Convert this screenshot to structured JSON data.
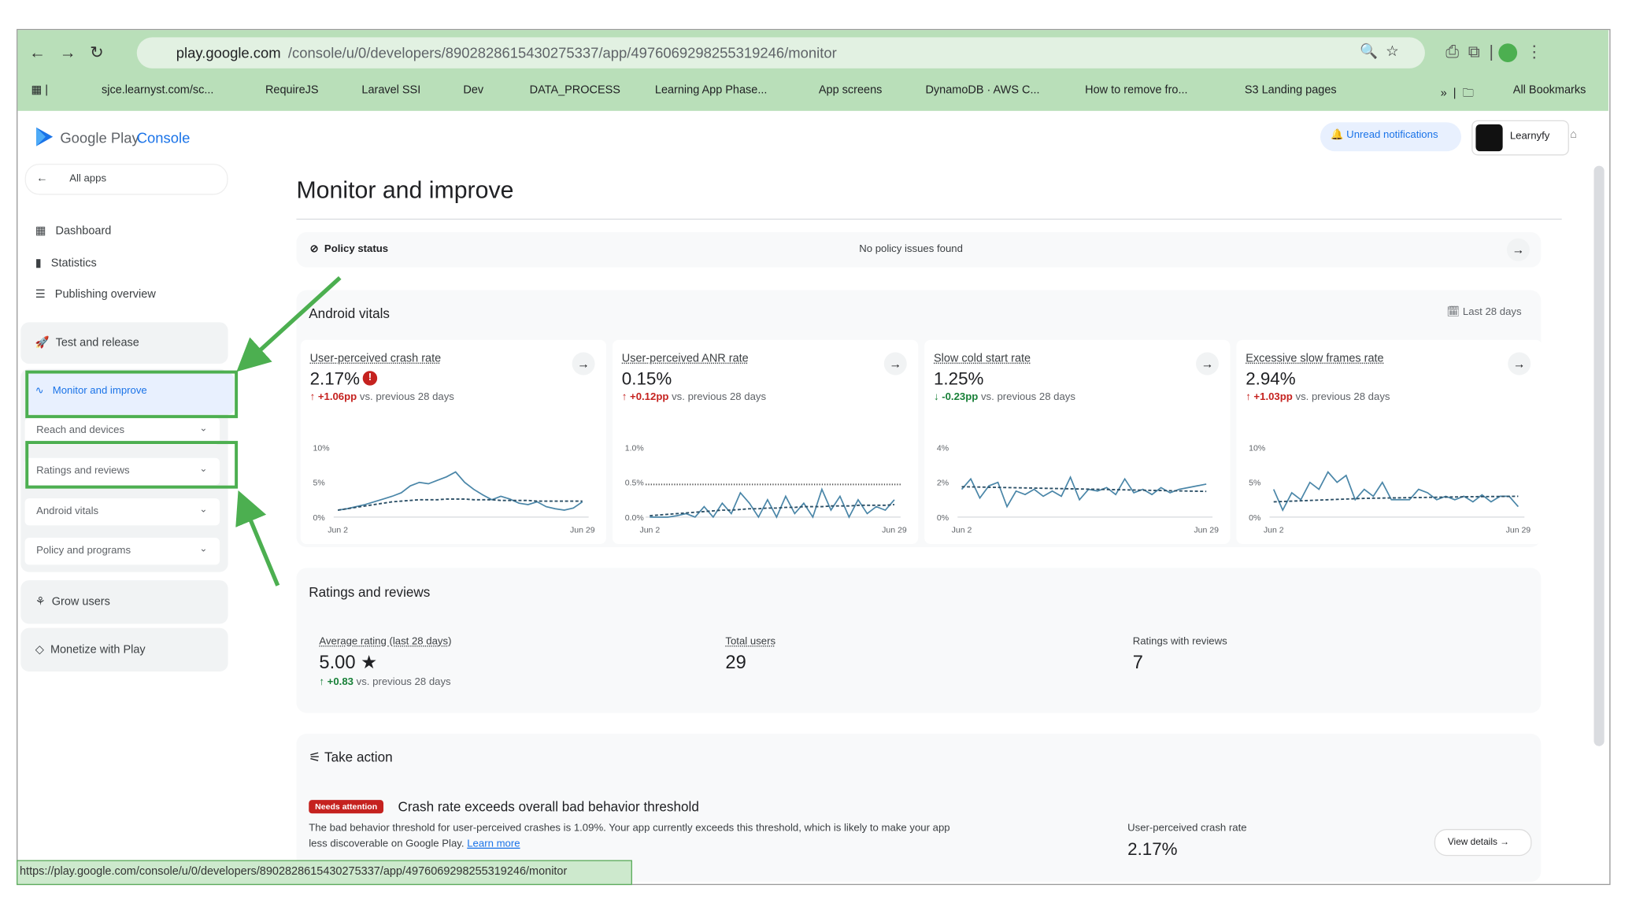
{
  "browser": {
    "url_host": "play.google.com",
    "url_path": "/console/u/0/developers/8902828615430275337/app/4976069298255319246/monitor",
    "bookmarks": [
      "sjce.learnyst.com/sc...",
      "RequireJS",
      "Laravel SSI",
      "Dev",
      "DATA_PROCESS",
      "Learning App Phase...",
      "App screens",
      "DynamoDB · AWS C...",
      "How to remove fro...",
      "S3 Landing pages"
    ],
    "all_bookmarks": "All Bookmarks",
    "status_url": "https://play.google.com/console/u/0/developers/8902828615430275337/app/4976069298255319246/monitor"
  },
  "header": {
    "brand": "Google Play",
    "product": "Console",
    "notifications": "Unread notifications",
    "account": "Learnyfy"
  },
  "sidebar": {
    "back": "All apps",
    "items": [
      "Dashboard",
      "Statistics",
      "Publishing overview",
      "Test and release",
      "Monitor and improve",
      "Grow users",
      "Monetize with Play"
    ],
    "subitems": [
      "Reach and devices",
      "Ratings and reviews",
      "Android vitals",
      "Policy and programs"
    ]
  },
  "main": {
    "title": "Monitor and improve",
    "policy": {
      "label": "Policy status",
      "status": "No policy issues found"
    },
    "vitals": {
      "title": "Android vitals",
      "period": "Last 28 days",
      "cards": [
        {
          "title": "User-perceived crash rate",
          "value": "2.17%",
          "change": "+1.06pp",
          "trend": "up",
          "comparison": "vs. previous 28 days",
          "alert": true,
          "chart": {
            "ylim": [
              0,
              10
            ],
            "yticks": [
              {
                "value": 0,
                "label": "0%"
              },
              {
                "value": 5,
                "label": "5%"
              },
              {
                "value": 10,
                "label": "10%"
              }
            ],
            "x_labels": [
              "Jun 2",
              "Jun 29"
            ],
            "series": [
              {
                "color": "#4a86a8",
                "style": "solid",
                "values": [
                  1,
                  1.2,
                  1.5,
                  1.8,
                  2.2,
                  2.6,
                  3,
                  3.5,
                  4.5,
                  5,
                  4.8,
                  5.3,
                  5.8,
                  6.5,
                  5,
                  4,
                  3.2,
                  2.5,
                  3,
                  2.6,
                  2,
                  1.8,
                  2.2,
                  1.5,
                  1.2,
                  1,
                  1.3,
                  2.2
                ]
              },
              {
                "color": "#2b4f66",
                "style": "dashed",
                "values": [
                  1,
                  1.2,
                  1.4,
                  1.6,
                  1.8,
                  2,
                  2.2,
                  2.3,
                  2.4,
                  2.5,
                  2.5,
                  2.5,
                  2.6,
                  2.6,
                  2.6,
                  2.5,
                  2.5,
                  2.5,
                  2.4,
                  2.4,
                  2.4,
                  2.4,
                  2.3,
                  2.3,
                  2.3,
                  2.3,
                  2.3,
                  2.3
                ]
              }
            ]
          }
        },
        {
          "title": "User-perceived ANR rate",
          "value": "0.15%",
          "change": "+0.12pp",
          "trend": "up",
          "comparison": "vs. previous 28 days",
          "alert": false,
          "chart": {
            "ylim": [
              0,
              1
            ],
            "yticks": [
              {
                "value": 0,
                "label": "0.0%"
              },
              {
                "value": 0.5,
                "label": "0.5%"
              },
              {
                "value": 1,
                "label": "1.0%"
              }
            ],
            "x_labels": [
              "Jun 2",
              "Jun 29"
            ],
            "threshold": 0.47,
            "series": [
              {
                "color": "#4a86a8",
                "style": "solid",
                "values": [
                  0,
                  0,
                  0,
                  0.02,
                  0.05,
                  0,
                  0.15,
                  0,
                  0.2,
                  0.05,
                  0.35,
                  0.2,
                  0,
                  0.25,
                  0,
                  0.3,
                  0.05,
                  0.2,
                  0,
                  0.4,
                  0.1,
                  0.3,
                  0,
                  0.25,
                  0.05,
                  0.15,
                  0.1,
                  0.25
                ]
              },
              {
                "color": "#2b4f66",
                "style": "dashed",
                "values": [
                  0.02,
                  0.03,
                  0.04,
                  0.05,
                  0.06,
                  0.07,
                  0.08,
                  0.09,
                  0.1,
                  0.1,
                  0.11,
                  0.12,
                  0.12,
                  0.13,
                  0.13,
                  0.14,
                  0.14,
                  0.15,
                  0.15,
                  0.15,
                  0.16,
                  0.16,
                  0.16,
                  0.17,
                  0.17,
                  0.17,
                  0.17,
                  0.18
                ]
              }
            ]
          }
        },
        {
          "title": "Slow cold start rate",
          "value": "1.25%",
          "change": "-0.23pp",
          "trend": "down",
          "comparison": "vs. previous 28 days",
          "alert": false,
          "chart": {
            "ylim": [
              0,
              4
            ],
            "yticks": [
              {
                "value": 0,
                "label": "0%"
              },
              {
                "value": 2,
                "label": "2%"
              },
              {
                "value": 4,
                "label": "4%"
              }
            ],
            "x_labels": [
              "Jun 2",
              "Jun 29"
            ],
            "series": [
              {
                "color": "#4a86a8",
                "style": "solid",
                "values": [
                  1.6,
                  2.2,
                  1.1,
                  1.8,
                  2,
                  0.6,
                  1.5,
                  1.3,
                  1.6,
                  1.2,
                  1.5,
                  1.2,
                  2.3,
                  1,
                  1.6,
                  1.5,
                  1.7,
                  1.3,
                  2.2,
                  1.4,
                  1.6,
                  1.3,
                  1.7,
                  1.4,
                  1.6,
                  1.7,
                  1.8,
                  1.9
                ]
              },
              {
                "color": "#2b4f66",
                "style": "dashed",
                "values": [
                  1.75,
                  1.74,
                  1.73,
                  1.72,
                  1.71,
                  1.7,
                  1.69,
                  1.68,
                  1.67,
                  1.66,
                  1.65,
                  1.64,
                  1.63,
                  1.62,
                  1.61,
                  1.6,
                  1.59,
                  1.58,
                  1.57,
                  1.56,
                  1.55,
                  1.54,
                  1.53,
                  1.52,
                  1.51,
                  1.5,
                  1.49,
                  1.48
                ]
              }
            ]
          }
        },
        {
          "title": "Excessive slow frames rate",
          "value": "2.94%",
          "change": "+1.03pp",
          "trend": "up",
          "comparison": "vs. previous 28 days",
          "alert": false,
          "chart": {
            "ylim": [
              0,
              10
            ],
            "yticks": [
              {
                "value": 0,
                "label": "0%"
              },
              {
                "value": 5,
                "label": "5%"
              },
              {
                "value": 10,
                "label": "10%"
              }
            ],
            "x_labels": [
              "Jun 2",
              "Jun 29"
            ],
            "series": [
              {
                "color": "#4a86a8",
                "style": "solid",
                "values": [
                  4,
                  1,
                  3.5,
                  2.5,
                  5,
                  4,
                  6.5,
                  5,
                  6,
                  2.5,
                  4,
                  3,
                  5,
                  2.5,
                  2.5,
                  2.5,
                  4,
                  3.5,
                  2.5,
                  3,
                  2.5,
                  3,
                  2.2,
                  3.2,
                  2.2,
                  3,
                  3,
                  1.5
                ]
              },
              {
                "color": "#2b4f66",
                "style": "dashed",
                "values": [
                  2.2,
                  2.25,
                  2.3,
                  2.35,
                  2.4,
                  2.45,
                  2.5,
                  2.55,
                  2.6,
                  2.65,
                  2.7,
                  2.72,
                  2.74,
                  2.76,
                  2.78,
                  2.8,
                  2.82,
                  2.84,
                  2.86,
                  2.88,
                  2.9,
                  2.92,
                  2.94,
                  2.95,
                  2.96,
                  2.97,
                  2.98,
                  3
                ]
              }
            ]
          }
        }
      ]
    },
    "ratings": {
      "title": "Ratings and reviews",
      "stats": [
        {
          "label": "Average rating (last 28 days)",
          "value": "5.00",
          "change": "+0.83",
          "comparison": "vs. previous 28 days"
        },
        {
          "label": "Total users",
          "value": "29"
        },
        {
          "label": "Ratings with reviews",
          "value": "7"
        }
      ]
    },
    "action": {
      "title": "Take action",
      "badge": "Needs attention",
      "heading": "Crash rate exceeds overall bad behavior threshold",
      "body1": "The bad behavior threshold for user-perceived crashes is 1.09%. Your app currently exceeds this threshold, which is likely to make your app",
      "body2": "less discoverable on Google Play.",
      "link": "Learn more",
      "metric_label": "User-perceived crash rate",
      "metric_value": "2.17%",
      "button": "View details"
    }
  }
}
